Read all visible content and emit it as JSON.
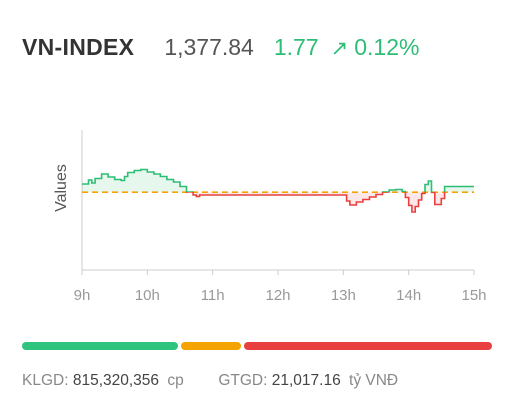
{
  "header": {
    "name": "VN-INDEX",
    "value": "1,377.84",
    "change": "1.77",
    "arrow_icon": "arrow-up-right-icon",
    "change_pct": "0.12%"
  },
  "colors": {
    "up": "#2ebd75",
    "down": "#e8403f",
    "reference": "#f5a300",
    "axis": "#cccccc",
    "label": "#999999"
  },
  "chart_data": {
    "type": "line",
    "ylabel": "Values",
    "xlabel": "",
    "x_ticks": [
      "9h",
      "10h",
      "11h",
      "12h",
      "13h",
      "14h",
      "15h"
    ],
    "reference": 1376.07,
    "ylim": [
      1360.5,
      1388.5
    ],
    "series": [
      {
        "x": [
          9.0,
          9.1,
          9.15,
          9.2,
          9.3,
          9.4,
          9.5,
          9.6,
          9.65,
          9.7,
          9.8,
          9.9,
          10.0,
          10.1,
          10.2,
          10.3,
          10.4,
          10.5,
          10.6,
          10.7,
          10.75,
          10.8,
          10.9,
          11.0,
          11.05,
          11.1,
          11.2,
          11.3,
          11.4,
          11.5,
          12.0,
          12.5,
          13.0,
          13.05,
          13.1,
          13.2,
          13.3,
          13.4,
          13.5,
          13.6,
          13.7,
          13.8,
          13.9,
          13.95,
          14.0,
          14.05,
          14.1,
          14.15,
          14.2,
          14.25,
          14.3,
          14.35,
          14.4,
          14.45,
          14.5,
          14.55,
          14.6,
          14.7,
          14.75,
          14.8,
          15.0
        ],
        "values": [
          1377.7,
          1378.5,
          1377.9,
          1378.8,
          1379.7,
          1379.1,
          1378.6,
          1378.4,
          1379.2,
          1380.0,
          1380.4,
          1380.6,
          1380.1,
          1379.7,
          1379.2,
          1378.6,
          1378.1,
          1377.2,
          1376.1,
          1375.5,
          1375.2,
          1375.5,
          1375.5,
          1375.5,
          1375.5,
          1375.5,
          1375.5,
          1375.5,
          1375.5,
          1375.5,
          1375.5,
          1375.5,
          1375.5,
          1374.3,
          1373.5,
          1374.1,
          1374.6,
          1375.1,
          1375.6,
          1376.1,
          1376.5,
          1376.6,
          1376.2,
          1375.0,
          1373.4,
          1372.1,
          1373.2,
          1374.5,
          1375.8,
          1377.6,
          1378.3,
          1376.0,
          1373.6,
          1373.6,
          1374.8,
          1377.2,
          1377.2,
          1377.2,
          1377.2,
          1377.2,
          1377.2
        ]
      }
    ]
  },
  "footer": {
    "klgd_label": "KLGD:",
    "klgd_value": "815,320,356",
    "klgd_unit": "cp",
    "gtgd_label": "GTGD:",
    "gtgd_value": "21,017.16",
    "gtgd_unit": "tỷ VNĐ"
  },
  "breadth": {
    "up": 152,
    "flat": 58,
    "down": 242
  }
}
